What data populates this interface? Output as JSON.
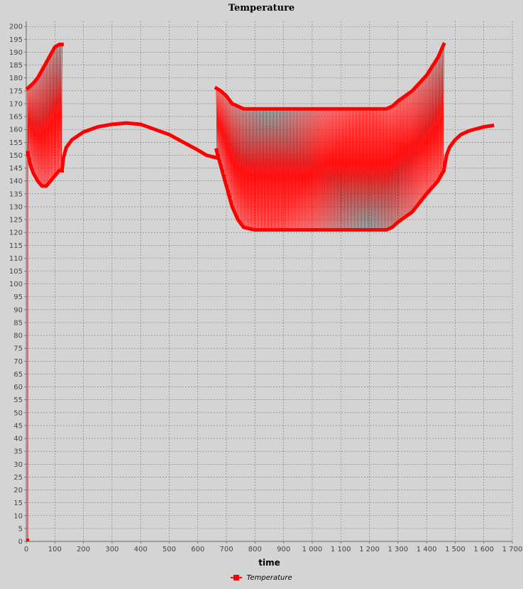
{
  "chart_data": {
    "type": "line",
    "title": "Temperature",
    "xlabel": "time",
    "ylabel": "",
    "xlim": [
      0,
      1700
    ],
    "ylim": [
      0,
      202
    ],
    "x_ticks": [
      0,
      100,
      200,
      300,
      400,
      500,
      600,
      700,
      800,
      900,
      1000,
      1100,
      1200,
      1300,
      1400,
      1500,
      1600,
      1700
    ],
    "x_tick_labels": [
      "0",
      "100",
      "200",
      "300",
      "400",
      "500",
      "600",
      "700",
      "800",
      "900",
      "1 000",
      "1 100",
      "1 200",
      "1 300",
      "1 400",
      "1 500",
      "1 600",
      "1 700"
    ],
    "y_ticks": [
      0,
      5,
      10,
      15,
      20,
      25,
      30,
      35,
      40,
      45,
      50,
      55,
      60,
      65,
      70,
      75,
      80,
      85,
      90,
      95,
      100,
      105,
      110,
      115,
      120,
      125,
      130,
      135,
      140,
      145,
      150,
      155,
      160,
      165,
      170,
      175,
      180,
      185,
      190,
      195,
      200
    ],
    "grid": true,
    "legend_position": "bottom-center",
    "series": [
      {
        "name": "Temperature",
        "color": "#ff0000",
        "marker": "square",
        "start_point": {
          "x": 5,
          "y": 0.5
        },
        "oscillation_bands": [
          {
            "x": [
              5,
              15,
              25,
              40,
              55,
              70,
              85,
              100,
              115,
              125
            ],
            "upper": [
              176,
              177,
              178,
              180,
              183,
              186,
              189,
              192,
              193,
              193
            ],
            "lower": [
              151,
              146,
              143,
              140,
              138,
              138,
              140,
              142,
              144,
              144
            ]
          },
          {
            "x": [
              665,
              680,
              700,
              720,
              740,
              760,
              800,
              900,
              1000,
              1100,
              1200,
              1260,
              1280,
              1300,
              1350,
              1400,
              1440,
              1460
            ],
            "upper": [
              176,
              175,
              173,
              170,
              169,
              168,
              168,
              168,
              168,
              168,
              168,
              168,
              169,
              171,
              175,
              181,
              188,
              193
            ],
            "lower": [
              152,
              146,
              138,
              130,
              125,
              122,
              121,
              121,
              121,
              121,
              121,
              121,
              122,
              124,
              128,
              135,
              140,
              144
            ]
          }
        ],
        "curve_segments": [
          {
            "x": [
              125,
              130,
              140,
              160,
              200,
              250,
              300,
              350,
              400,
              450,
              500,
              550,
              600,
              630,
              665
            ],
            "y": [
              144,
              149,
              153,
              156,
              159,
              161,
              162,
              162.5,
              162,
              160,
              158,
              155,
              152,
              150,
              149
            ]
          },
          {
            "x": [
              1460,
              1470,
              1480,
              1500,
              1520,
              1550,
              1600,
              1630
            ],
            "y": [
              144,
              150,
              153,
              156,
              158,
              159.5,
              161,
              161.5
            ]
          }
        ]
      }
    ]
  }
}
